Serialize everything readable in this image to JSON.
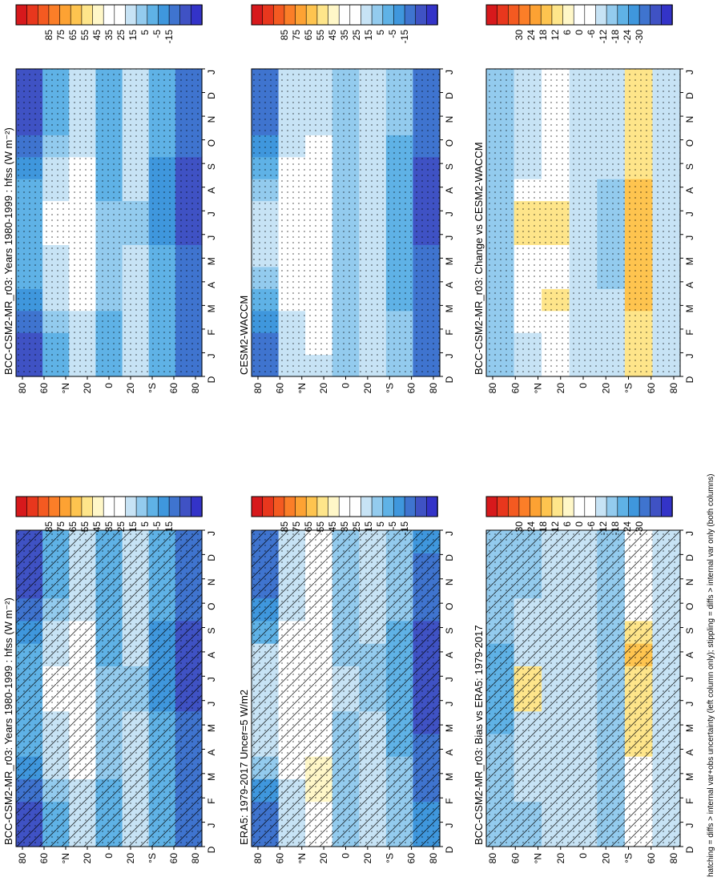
{
  "footnote": "hatching = diffs > internal var+obs uncertainty (left column only); stippling = diffs > internal var only (both columns)",
  "colorbars": {
    "abs": [
      "85",
      "75",
      "65",
      "55",
      "45",
      "35",
      "25",
      "15",
      "5",
      "-5",
      "-15"
    ],
    "diff": [
      "30",
      "24",
      "18",
      "12",
      "6",
      "0",
      "-6",
      "-12",
      "-18",
      "-24",
      "-30"
    ]
  },
  "palette": {
    "abs": [
      "#d7191c",
      "#e8371d",
      "#f45a21",
      "#fb7e28",
      "#fda233",
      "#fec44f",
      "#fee58a",
      "#fff7c8",
      "#ffffff",
      "#ffffff",
      "#c7e3f5",
      "#93cbee",
      "#5fb2e6",
      "#3f97dd",
      "#3f74cf",
      "#3f52c4",
      "#3333c8"
    ],
    "diff": [
      "#d7191c",
      "#e8371d",
      "#f45a21",
      "#fb7e28",
      "#fda233",
      "#fec44f",
      "#fee58a",
      "#fff7c8",
      "#ffffff",
      "#ffffff",
      "#c7e3f5",
      "#93cbee",
      "#5fb2e6",
      "#3f97dd",
      "#3f74cf",
      "#3f52c4",
      "#3333c8"
    ]
  },
  "chart_data": [
    {
      "type": "heatmap",
      "title": "BCC-CSM2-MR_r03: Years 1980-1999 : hfss (W m⁻²)",
      "x_ticks": [
        "D",
        "J",
        "F",
        "M",
        "A",
        "M",
        "J",
        "J",
        "A",
        "S",
        "O",
        "N",
        "D",
        "J"
      ],
      "y_ticks": [
        "80",
        "60",
        "°N",
        "20",
        "0",
        "20",
        "°S",
        "60",
        "80"
      ],
      "colorbar": "abs",
      "hatching": true,
      "stippling": true,
      "values_rows_N_to_S_cols_months": [
        [
          -10,
          -10,
          -5,
          5,
          10,
          10,
          10,
          10,
          10,
          5,
          -5,
          -10,
          -10,
          -10
        ],
        [
          10,
          10,
          15,
          20,
          25,
          25,
          30,
          30,
          25,
          20,
          15,
          10,
          10,
          10
        ],
        [
          20,
          22,
          25,
          28,
          30,
          33,
          35,
          35,
          33,
          28,
          22,
          20,
          20,
          20
        ],
        [
          10,
          10,
          12,
          15,
          15,
          15,
          15,
          15,
          12,
          10,
          10,
          10,
          10,
          10
        ],
        [
          20,
          20,
          22,
          22,
          20,
          20,
          18,
          18,
          20,
          22,
          22,
          20,
          20,
          20
        ],
        [
          10,
          10,
          10,
          10,
          10,
          10,
          5,
          5,
          5,
          5,
          10,
          10,
          10,
          10
        ],
        [
          -5,
          -5,
          0,
          0,
          -5,
          -5,
          -10,
          -10,
          -10,
          -10,
          -5,
          -5,
          -5,
          -5
        ]
      ]
    },
    {
      "type": "heatmap",
      "title": "BCC-CSM2-MR_r03: Years 1980-1999 : hfss (W m⁻²)",
      "x_ticks": [
        "D",
        "J",
        "F",
        "M",
        "A",
        "M",
        "J",
        "J",
        "A",
        "S",
        "O",
        "N",
        "D",
        "J"
      ],
      "y_ticks": [
        "80",
        "60",
        "°N",
        "20",
        "0",
        "20",
        "°S",
        "60",
        "80"
      ],
      "colorbar": "abs",
      "hatching": false,
      "stippling": true,
      "values_rows_N_to_S_cols_months": [
        [
          -10,
          -10,
          -5,
          5,
          10,
          10,
          10,
          10,
          10,
          5,
          -5,
          -10,
          -10,
          -10
        ],
        [
          10,
          10,
          15,
          20,
          25,
          25,
          30,
          30,
          25,
          20,
          15,
          10,
          10,
          10
        ],
        [
          20,
          22,
          25,
          28,
          30,
          33,
          35,
          35,
          33,
          28,
          22,
          20,
          20,
          20
        ],
        [
          10,
          10,
          12,
          15,
          15,
          15,
          15,
          15,
          12,
          10,
          10,
          10,
          10,
          10
        ],
        [
          20,
          20,
          22,
          22,
          20,
          20,
          18,
          18,
          20,
          22,
          22,
          20,
          20,
          20
        ],
        [
          10,
          10,
          10,
          10,
          10,
          10,
          5,
          5,
          5,
          5,
          10,
          10,
          10,
          10
        ],
        [
          -5,
          -5,
          0,
          0,
          -5,
          -5,
          -10,
          -10,
          -10,
          -10,
          -5,
          -5,
          -5,
          -5
        ]
      ]
    },
    {
      "type": "heatmap",
      "title": "ERA5: 1979-2017 Uncer=5 W/m2",
      "x_ticks": [
        "D",
        "J",
        "F",
        "M",
        "A",
        "M",
        "J",
        "J",
        "A",
        "S",
        "O",
        "N",
        "D",
        "J"
      ],
      "y_ticks": [
        "80",
        "60",
        "°N",
        "20",
        "0",
        "20",
        "°S",
        "60",
        "80"
      ],
      "colorbar": "abs",
      "hatching": true,
      "stippling": true,
      "values_rows_N_to_S_cols_months": [
        [
          0,
          0,
          5,
          15,
          20,
          25,
          25,
          25,
          20,
          10,
          5,
          0,
          0,
          0
        ],
        [
          20,
          20,
          25,
          30,
          35,
          35,
          38,
          38,
          35,
          30,
          25,
          20,
          20,
          20
        ],
        [
          30,
          35,
          40,
          40,
          35,
          35,
          35,
          35,
          30,
          30,
          30,
          30,
          30,
          30
        ],
        [
          15,
          15,
          15,
          18,
          18,
          18,
          20,
          20,
          18,
          15,
          15,
          15,
          15,
          15
        ],
        [
          20,
          22,
          22,
          22,
          22,
          20,
          18,
          18,
          18,
          20,
          22,
          22,
          20,
          20
        ],
        [
          15,
          15,
          15,
          15,
          12,
          12,
          10,
          10,
          10,
          10,
          15,
          15,
          15,
          15
        ],
        [
          5,
          5,
          0,
          -5,
          -5,
          -10,
          -10,
          -10,
          -10,
          -10,
          -5,
          -5,
          0,
          5
        ]
      ]
    },
    {
      "type": "heatmap",
      "title": "CESM2-WACCM",
      "x_ticks": [
        "D",
        "J",
        "F",
        "M",
        "A",
        "M",
        "J",
        "J",
        "A",
        "S",
        "O",
        "N",
        "D",
        "J"
      ],
      "y_ticks": [
        "80",
        "60",
        "°N",
        "20",
        "0",
        "20",
        "°S",
        "60",
        "80"
      ],
      "colorbar": "abs",
      "hatching": false,
      "stippling": true,
      "values_rows_N_to_S_cols_months": [
        [
          0,
          0,
          5,
          10,
          15,
          20,
          20,
          20,
          15,
          10,
          5,
          0,
          0,
          0
        ],
        [
          20,
          20,
          22,
          28,
          32,
          35,
          38,
          38,
          35,
          30,
          25,
          20,
          20,
          20
        ],
        [
          25,
          28,
          30,
          32,
          33,
          35,
          35,
          35,
          33,
          30,
          28,
          25,
          25,
          25
        ],
        [
          15,
          15,
          15,
          18,
          18,
          18,
          18,
          18,
          15,
          15,
          15,
          15,
          15,
          15
        ],
        [
          22,
          22,
          22,
          22,
          22,
          20,
          20,
          20,
          22,
          22,
          22,
          22,
          22,
          22
        ],
        [
          15,
          15,
          15,
          12,
          12,
          10,
          10,
          10,
          10,
          10,
          12,
          15,
          15,
          15
        ],
        [
          -5,
          -5,
          -5,
          -5,
          -5,
          -5,
          -10,
          -10,
          -10,
          -10,
          -5,
          -5,
          -5,
          -5
        ]
      ]
    },
    {
      "type": "heatmap",
      "title": "BCC-CSM2-MR_r03: Bias vs ERA5: 1979-2017",
      "x_ticks": [
        "D",
        "J",
        "F",
        "M",
        "A",
        "M",
        "J",
        "J",
        "A",
        "S",
        "O",
        "N",
        "D",
        "J"
      ],
      "y_ticks": [
        "80",
        "60",
        "°N",
        "20",
        "0",
        "20",
        "°S",
        "60",
        "80"
      ],
      "colorbar": "diff",
      "hatching": true,
      "stippling": true,
      "values_rows_N_to_S_cols_months": [
        [
          -12,
          -12,
          -10,
          -12,
          -12,
          -15,
          -15,
          -15,
          -15,
          -12,
          -10,
          -12,
          -12,
          -12
        ],
        [
          -10,
          -10,
          -8,
          -8,
          -8,
          -6,
          6,
          6,
          -6,
          -8,
          -8,
          -10,
          -10,
          -10
        ],
        [
          -6,
          -6,
          -6,
          -6,
          -6,
          -6,
          -6,
          -6,
          -6,
          -6,
          -6,
          -6,
          -6,
          -6
        ],
        [
          -6,
          -6,
          -6,
          -6,
          -6,
          -6,
          -6,
          -6,
          -6,
          -6,
          -6,
          -6,
          -6,
          -6
        ],
        [
          -12,
          -12,
          -12,
          -12,
          -12,
          -12,
          -12,
          -12,
          -12,
          -12,
          -12,
          -12,
          -12,
          -12
        ],
        [
          0,
          0,
          0,
          0,
          6,
          6,
          6,
          6,
          12,
          6,
          0,
          0,
          0,
          0
        ],
        [
          -6,
          -6,
          -6,
          -6,
          -6,
          -6,
          -6,
          -6,
          -6,
          -6,
          -6,
          -6,
          -6,
          -6
        ]
      ]
    },
    {
      "type": "heatmap",
      "title": "BCC-CSM2-MR_r03: Change vs CESM2-WACCM",
      "x_ticks": [
        "D",
        "J",
        "F",
        "M",
        "A",
        "M",
        "J",
        "J",
        "A",
        "S",
        "O",
        "N",
        "D",
        "J"
      ],
      "y_ticks": [
        "80",
        "60",
        "°N",
        "20",
        "0",
        "20",
        "°S",
        "60",
        "80"
      ],
      "colorbar": "diff",
      "hatching": false,
      "stippling": true,
      "values_rows_N_to_S_cols_months": [
        [
          -12,
          -12,
          -10,
          -10,
          -10,
          -12,
          -12,
          -12,
          -12,
          -10,
          -10,
          -12,
          -12,
          -12
        ],
        [
          -6,
          -6,
          0,
          0,
          0,
          0,
          6,
          6,
          0,
          -6,
          -6,
          -6,
          -6,
          -6
        ],
        [
          0,
          0,
          0,
          6,
          0,
          0,
          6,
          6,
          0,
          0,
          0,
          0,
          0,
          0
        ],
        [
          -6,
          -6,
          -6,
          -6,
          -6,
          -6,
          -6,
          -6,
          -6,
          -6,
          -6,
          -6,
          -6,
          -6
        ],
        [
          -6,
          -6,
          -6,
          -6,
          -12,
          -12,
          -12,
          -12,
          -12,
          -6,
          -6,
          -6,
          -6,
          -6
        ],
        [
          6,
          6,
          6,
          12,
          12,
          12,
          12,
          12,
          12,
          6,
          6,
          6,
          6,
          6
        ],
        [
          -6,
          -6,
          -6,
          -6,
          -6,
          -6,
          -6,
          -6,
          -6,
          -6,
          -6,
          -6,
          -6,
          -6
        ]
      ]
    }
  ]
}
